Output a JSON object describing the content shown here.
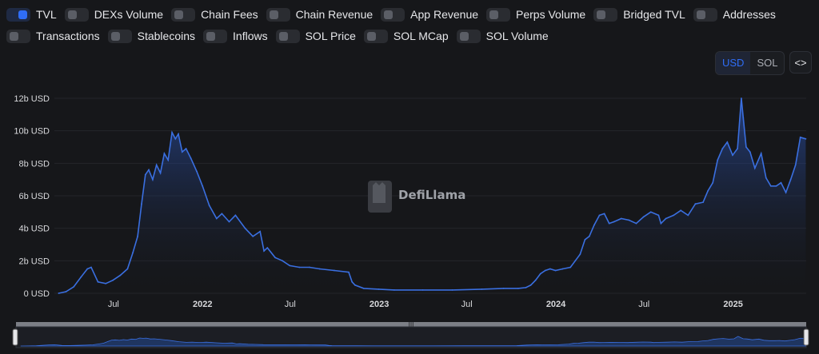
{
  "toggles": [
    {
      "label": "TVL",
      "on": true
    },
    {
      "label": "DEXs Volume",
      "on": false
    },
    {
      "label": "Chain Fees",
      "on": false
    },
    {
      "label": "Chain Revenue",
      "on": false
    },
    {
      "label": "App Revenue",
      "on": false
    },
    {
      "label": "Perps Volume",
      "on": false
    },
    {
      "label": "Bridged TVL",
      "on": false
    },
    {
      "label": "Addresses",
      "on": false
    },
    {
      "label": "Transactions",
      "on": false
    },
    {
      "label": "Stablecoins",
      "on": false
    },
    {
      "label": "Inflows",
      "on": false
    },
    {
      "label": "SOL Price",
      "on": false
    },
    {
      "label": "SOL MCap",
      "on": false
    },
    {
      "label": "SOL Volume",
      "on": false
    }
  ],
  "currency": {
    "options": [
      "USD",
      "SOL"
    ],
    "selected": "USD"
  },
  "embed_label": "<>",
  "watermark": "DefiLlama",
  "colors": {
    "accent": "#2f6df6",
    "line": "#3a6fe0",
    "background": "#16171a"
  },
  "chart_data": {
    "type": "area",
    "title": "",
    "xlabel": "",
    "ylabel": "",
    "ylim": [
      0,
      12
    ],
    "y_unit": "b USD",
    "y_ticks": [
      "0 USD",
      "2b USD",
      "4b USD",
      "6b USD",
      "8b USD",
      "10b USD",
      "12b USD"
    ],
    "x_ticks": [
      "Jul",
      "2022",
      "Jul",
      "2023",
      "Jul",
      "2024",
      "Jul",
      "2025"
    ],
    "series": [
      {
        "name": "TVL",
        "x": [
          "2021-03-10",
          "2021-03-25",
          "2021-04-10",
          "2021-04-25",
          "2021-05-08",
          "2021-05-16",
          "2021-05-30",
          "2021-06-15",
          "2021-06-30",
          "2021-07-15",
          "2021-07-30",
          "2021-08-10",
          "2021-08-20",
          "2021-08-28",
          "2021-09-05",
          "2021-09-12",
          "2021-09-20",
          "2021-09-28",
          "2021-10-06",
          "2021-10-14",
          "2021-10-22",
          "2021-10-30",
          "2021-11-06",
          "2021-11-12",
          "2021-11-20",
          "2021-11-28",
          "2021-12-08",
          "2021-12-20",
          "2022-01-01",
          "2022-01-15",
          "2022-01-30",
          "2022-02-10",
          "2022-02-25",
          "2022-03-10",
          "2022-03-30",
          "2022-04-15",
          "2022-04-30",
          "2022-05-08",
          "2022-05-15",
          "2022-05-31",
          "2022-06-15",
          "2022-06-30",
          "2022-07-20",
          "2022-08-10",
          "2022-08-31",
          "2022-09-30",
          "2022-10-30",
          "2022-11-06",
          "2022-11-12",
          "2022-11-30",
          "2022-12-31",
          "2023-02-01",
          "2023-04-01",
          "2023-06-01",
          "2023-08-01",
          "2023-09-15",
          "2023-10-15",
          "2023-10-31",
          "2023-11-10",
          "2023-11-20",
          "2023-11-30",
          "2023-12-10",
          "2023-12-20",
          "2023-12-31",
          "2024-01-15",
          "2024-01-31",
          "2024-02-10",
          "2024-02-20",
          "2024-03-01",
          "2024-03-10",
          "2024-03-20",
          "2024-03-31",
          "2024-04-10",
          "2024-04-20",
          "2024-04-30",
          "2024-05-15",
          "2024-05-31",
          "2024-06-15",
          "2024-06-30",
          "2024-07-15",
          "2024-07-31",
          "2024-08-05",
          "2024-08-15",
          "2024-08-31",
          "2024-09-15",
          "2024-09-30",
          "2024-10-15",
          "2024-10-31",
          "2024-11-10",
          "2024-11-20",
          "2024-11-30",
          "2024-12-10",
          "2024-12-20",
          "2024-12-31",
          "2025-01-10",
          "2025-01-18",
          "2025-01-22",
          "2025-01-28",
          "2025-02-05",
          "2025-02-15",
          "2025-02-28",
          "2025-03-10",
          "2025-03-20",
          "2025-03-31",
          "2025-04-10",
          "2025-04-20",
          "2025-04-30",
          "2025-05-10",
          "2025-05-20",
          "2025-05-31"
        ],
        "values": [
          0.0,
          0.1,
          0.4,
          1.0,
          1.5,
          1.6,
          0.7,
          0.6,
          0.8,
          1.1,
          1.5,
          2.5,
          3.5,
          5.5,
          7.3,
          7.6,
          7.0,
          7.9,
          7.4,
          8.6,
          8.2,
          9.9,
          9.5,
          9.8,
          8.7,
          8.9,
          8.3,
          7.5,
          6.6,
          5.4,
          4.6,
          4.9,
          4.4,
          4.8,
          4.0,
          3.5,
          3.8,
          2.6,
          2.8,
          2.2,
          2.0,
          1.7,
          1.6,
          1.6,
          1.5,
          1.4,
          1.3,
          0.7,
          0.5,
          0.3,
          0.25,
          0.2,
          0.2,
          0.2,
          0.25,
          0.3,
          0.3,
          0.35,
          0.5,
          0.8,
          1.2,
          1.4,
          1.5,
          1.4,
          1.5,
          1.6,
          2.0,
          2.4,
          3.3,
          3.5,
          4.2,
          4.8,
          4.9,
          4.3,
          4.4,
          4.6,
          4.5,
          4.3,
          4.7,
          5.0,
          4.8,
          4.3,
          4.6,
          4.8,
          5.1,
          4.8,
          5.5,
          5.6,
          6.3,
          6.8,
          8.2,
          8.9,
          9.3,
          8.5,
          8.9,
          12.0,
          10.8,
          9.0,
          8.7,
          7.7,
          8.6,
          7.1,
          6.6,
          6.6,
          6.8,
          6.2,
          7.0,
          7.9,
          9.6,
          9.5
        ]
      }
    ]
  },
  "range_selector": {
    "handle_label": "III"
  }
}
